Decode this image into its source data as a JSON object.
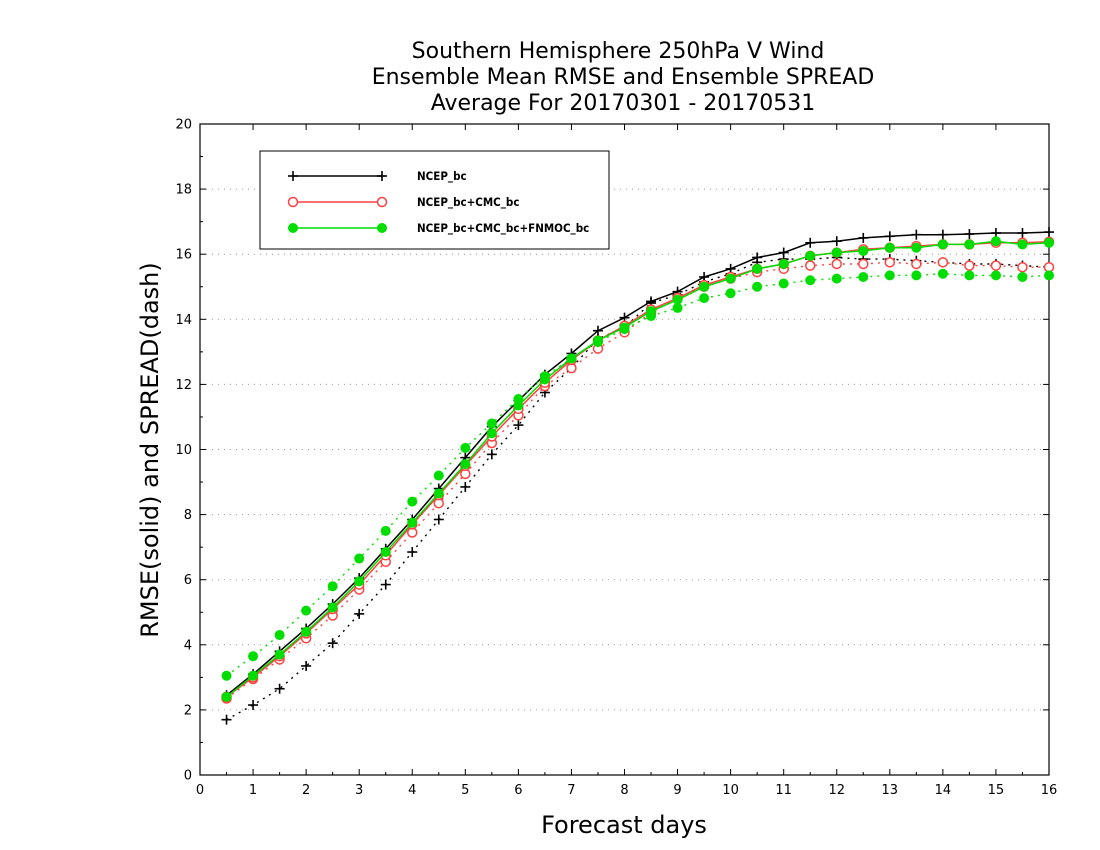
{
  "chart_data": {
    "type": "line",
    "title": [
      "Southern Hemisphere 250hPa V Wind",
      "Ensemble Mean RMSE and Ensemble SPREAD",
      "Average For 20170301 - 20170531"
    ],
    "xlabel": "Forecast days",
    "ylabel": "RMSE(solid) and SPREAD(dash)",
    "xlim": [
      0,
      16
    ],
    "ylim": [
      0,
      20
    ],
    "xticks": [
      "0",
      "1",
      "2",
      "3",
      "4",
      "5",
      "6",
      "7",
      "8",
      "9",
      "10",
      "11",
      "12",
      "13",
      "14",
      "15",
      "16"
    ],
    "yticks": [
      "0",
      "2",
      "4",
      "6",
      "8",
      "10",
      "12",
      "14",
      "16",
      "18",
      "20"
    ],
    "grid": "horizontal dotted",
    "legend_placement": "top-left",
    "x": [
      0.5,
      1,
      1.5,
      2,
      2.5,
      3,
      3.5,
      4,
      4.5,
      5,
      5.5,
      6,
      6.5,
      7,
      7.5,
      8,
      8.5,
      9,
      9.5,
      10,
      10.5,
      11,
      11.5,
      12,
      12.5,
      13,
      13.5,
      14,
      14.5,
      15,
      15.5,
      16
    ],
    "series": [
      {
        "name": "NCEP_bc",
        "color": "#000000",
        "marker": "plus",
        "rmse": [
          2.45,
          3.1,
          3.8,
          4.5,
          5.25,
          6.05,
          6.95,
          7.85,
          8.8,
          9.75,
          10.7,
          11.5,
          12.3,
          12.95,
          13.65,
          14.05,
          14.55,
          14.85,
          15.3,
          15.55,
          15.9,
          16.05,
          16.35,
          16.4,
          16.5,
          16.55,
          16.6,
          16.6,
          16.62,
          16.65,
          16.65,
          16.68
        ],
        "spread": [
          1.7,
          2.15,
          2.65,
          3.35,
          4.05,
          4.95,
          5.85,
          6.85,
          7.85,
          8.85,
          9.85,
          10.75,
          11.75,
          12.5,
          13.4,
          13.75,
          14.5,
          14.75,
          15.15,
          15.4,
          15.75,
          15.85,
          15.85,
          15.9,
          15.85,
          15.85,
          15.8,
          15.75,
          15.7,
          15.7,
          15.65,
          15.6
        ]
      },
      {
        "name": "NCEP_bc+CMC_bc",
        "color": "#ff4040",
        "marker": "open-circle",
        "rmse": [
          2.4,
          3.0,
          3.65,
          4.35,
          5.1,
          5.85,
          6.75,
          7.7,
          8.6,
          9.5,
          10.4,
          11.25,
          12.05,
          12.75,
          13.35,
          13.8,
          14.3,
          14.65,
          15.05,
          15.3,
          15.55,
          15.7,
          15.95,
          16.05,
          16.15,
          16.2,
          16.25,
          16.3,
          16.3,
          16.35,
          16.35,
          16.38
        ],
        "spread": [
          2.35,
          2.95,
          3.55,
          4.2,
          4.9,
          5.7,
          6.55,
          7.45,
          8.35,
          9.25,
          10.2,
          11.05,
          11.95,
          12.5,
          13.1,
          13.6,
          14.2,
          14.65,
          15.0,
          15.25,
          15.45,
          15.55,
          15.65,
          15.7,
          15.7,
          15.75,
          15.7,
          15.75,
          15.65,
          15.65,
          15.6,
          15.6
        ]
      },
      {
        "name": "NCEP_bc+CMC_bc+FNMOC_bc",
        "color": "#00dd00",
        "marker": "filled-circle",
        "rmse": [
          2.4,
          3.05,
          3.7,
          4.4,
          5.15,
          5.95,
          6.85,
          7.75,
          8.65,
          9.55,
          10.5,
          11.35,
          12.15,
          12.8,
          13.35,
          13.75,
          14.25,
          14.6,
          15.0,
          15.25,
          15.55,
          15.7,
          15.95,
          16.05,
          16.1,
          16.2,
          16.2,
          16.3,
          16.3,
          16.4,
          16.3,
          16.35
        ],
        "spread": [
          3.05,
          3.65,
          4.3,
          5.05,
          5.8,
          6.65,
          7.5,
          8.4,
          9.2,
          10.05,
          10.8,
          11.55,
          12.25,
          12.8,
          13.3,
          13.7,
          14.1,
          14.35,
          14.65,
          14.8,
          15.0,
          15.1,
          15.2,
          15.25,
          15.3,
          15.35,
          15.35,
          15.4,
          15.35,
          15.35,
          15.3,
          15.35
        ]
      }
    ]
  }
}
